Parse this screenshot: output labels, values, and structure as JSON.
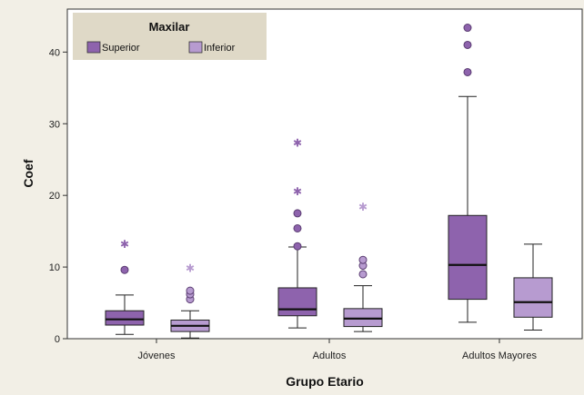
{
  "chart_data": {
    "type": "box",
    "xlabel": "Grupo Etario",
    "ylabel": "Coef",
    "ylim": [
      0,
      46
    ],
    "yticks": [
      0,
      10,
      20,
      30,
      40
    ],
    "categories": [
      "Jóvenes",
      "Adultos",
      "Adultos Mayores"
    ],
    "legend": {
      "title": "Maxilar",
      "position": "top-left",
      "entries": [
        "Superior",
        "Inferior"
      ]
    },
    "series": [
      {
        "name": "Superior",
        "color": "#8e63ad",
        "boxes": [
          {
            "category": "Jóvenes",
            "whisker_low": 0.6,
            "q1": 1.9,
            "median": 2.7,
            "q3": 3.9,
            "whisker_high": 6.1,
            "outliers": [
              9.6
            ],
            "extremes": [
              13.2
            ]
          },
          {
            "category": "Adultos",
            "whisker_low": 1.5,
            "q1": 3.2,
            "median": 4.1,
            "q3": 7.1,
            "whisker_high": 12.8,
            "outliers": [
              12.9,
              15.4,
              17.5
            ],
            "extremes": [
              20.5,
              27.3
            ]
          },
          {
            "category": "Adultos Mayores",
            "whisker_low": 2.3,
            "q1": 5.5,
            "median": 10.3,
            "q3": 17.2,
            "whisker_high": 33.8,
            "outliers": [
              37.2,
              41.0,
              43.4
            ],
            "extremes": []
          }
        ]
      },
      {
        "name": "Inferior",
        "color": "#b79bd0",
        "boxes": [
          {
            "category": "Jóvenes",
            "whisker_low": 0.1,
            "q1": 1.0,
            "median": 1.8,
            "q3": 2.6,
            "whisker_high": 3.9,
            "outliers": [
              5.5,
              6.2,
              6.7
            ],
            "extremes": [
              9.8
            ]
          },
          {
            "category": "Adultos",
            "whisker_low": 1.0,
            "q1": 1.7,
            "median": 2.8,
            "q3": 4.2,
            "whisker_high": 7.4,
            "outliers": [
              9.0,
              10.2,
              11.0
            ],
            "extremes": [
              18.4
            ]
          },
          {
            "category": "Adultos Mayores",
            "whisker_low": 1.2,
            "q1": 3.0,
            "median": 5.1,
            "q3": 8.5,
            "whisker_high": 13.2,
            "outliers": [],
            "extremes": []
          }
        ]
      }
    ]
  }
}
